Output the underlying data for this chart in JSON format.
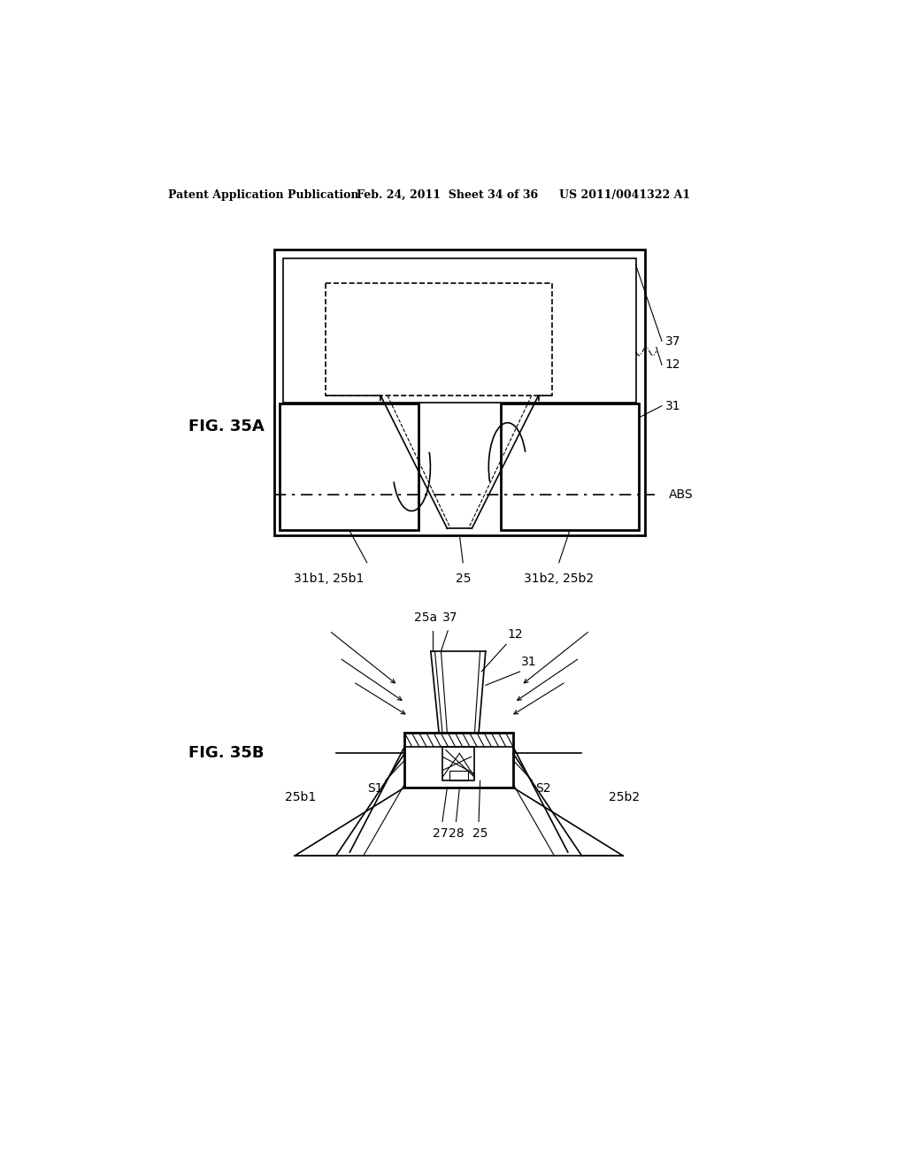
{
  "bg_color": "#ffffff",
  "line_color": "#000000",
  "header_text": "Patent Application Publication",
  "header_date": "Feb. 24, 2011  Sheet 34 of 36",
  "header_patent": "US 2011/0041322 A1",
  "fig_a_label": "FIG. 35A",
  "fig_b_label": "FIG. 35B"
}
